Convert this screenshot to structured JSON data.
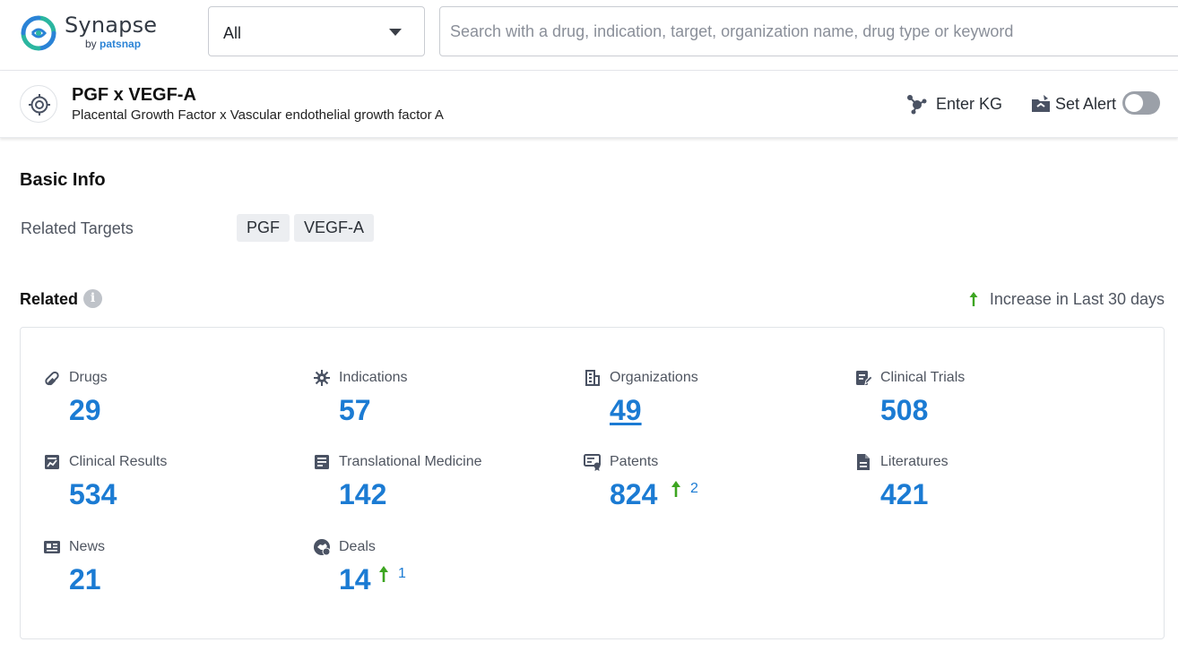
{
  "header": {
    "logo": {
      "name": "Synapse",
      "by": "by",
      "brand": "patsnap"
    },
    "category_select": {
      "value": "All"
    },
    "search": {
      "placeholder": "Search with a drug, indication, target, organization name, drug type or keyword"
    }
  },
  "target": {
    "title": "PGF x VEGF-A",
    "subtitle": "Placental Growth Factor x Vascular endothelial growth factor A",
    "enter_kg_label": "Enter KG",
    "set_alert_label": "Set Alert",
    "alert_enabled": false
  },
  "basic_info": {
    "title": "Basic Info",
    "related_targets_label": "Related Targets",
    "related_targets": [
      "PGF",
      "VEGF-A"
    ]
  },
  "related": {
    "title": "Related",
    "increase_legend": "Increase in Last 30 days",
    "increase_color": "#3da521",
    "value_color": "#1b7bd3",
    "stats": [
      {
        "name": "Drugs",
        "icon": "pill-icon",
        "value": "29"
      },
      {
        "name": "Indications",
        "icon": "virus-icon",
        "value": "57"
      },
      {
        "name": "Organizations",
        "icon": "building-icon",
        "value": "49"
      },
      {
        "name": "Clinical Trials",
        "icon": "clipboard-edit-icon",
        "value": "508"
      },
      {
        "name": "Clinical Results",
        "icon": "chart-report-icon",
        "value": "534"
      },
      {
        "name": "Translational Medicine",
        "icon": "document-list-icon",
        "value": "142"
      },
      {
        "name": "Patents",
        "icon": "certificate-icon",
        "value": "824",
        "increase": "2"
      },
      {
        "name": "Literatures",
        "icon": "file-text-icon",
        "value": "421"
      },
      {
        "name": "News",
        "icon": "newspaper-icon",
        "value": "21"
      },
      {
        "name": "Deals",
        "icon": "handshake-icon",
        "value": "14",
        "increase": "1"
      }
    ]
  }
}
